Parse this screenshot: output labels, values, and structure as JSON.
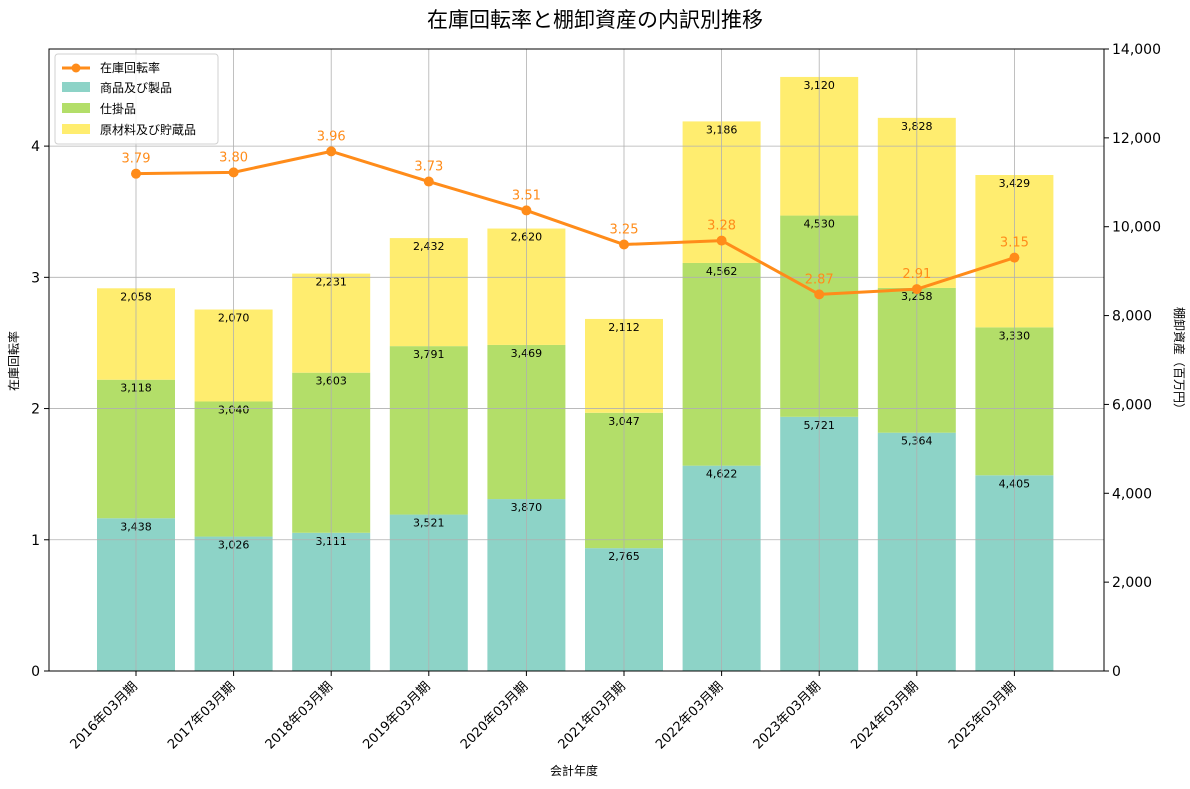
{
  "chart_data": {
    "type": "bar",
    "title": "在庫回転率と棚卸資産の内訳別推移",
    "xlabel": "会計年度",
    "ylabel_left": "在庫回転率",
    "ylabel_right": "棚卸資産（百万円）",
    "categories": [
      "2016年03月期",
      "2017年03月期",
      "2018年03月期",
      "2019年03月期",
      "2020年03月期",
      "2021年03月期",
      "2022年03月期",
      "2023年03月期",
      "2024年03月期",
      "2025年03月期"
    ],
    "stacked_bars": [
      {
        "name": "商品及び製品",
        "color": "#8dd3c7",
        "values": [
          3438,
          3026,
          3111,
          3521,
          3870,
          2765,
          4622,
          5721,
          5364,
          4405
        ],
        "labels": [
          "3,438",
          "3,026",
          "3,111",
          "3,521",
          "3,870",
          "2,765",
          "4,622",
          "5,721",
          "5,364",
          "4,405"
        ]
      },
      {
        "name": "仕掛品",
        "color": "#b3de69",
        "values": [
          3118,
          3040,
          3603,
          3791,
          3469,
          3047,
          4562,
          4530,
          3258,
          3330
        ],
        "labels": [
          "3,118",
          "3,040",
          "3,603",
          "3,791",
          "3,469",
          "3,047",
          "4,562",
          "4,530",
          "3,258",
          "3,330"
        ]
      },
      {
        "name": "原材料及び貯蔵品",
        "color": "#ffed6f",
        "values": [
          2058,
          2070,
          2231,
          2432,
          2620,
          2112,
          3186,
          3120,
          3828,
          3429
        ],
        "labels": [
          "2,058",
          "2,070",
          "2,231",
          "2,432",
          "2,620",
          "2,112",
          "3,186",
          "3,120",
          "3,828",
          "3,429"
        ]
      }
    ],
    "line": {
      "name": "在庫回転率",
      "color": "#ff8c1a",
      "values": [
        3.79,
        3.8,
        3.96,
        3.73,
        3.51,
        3.25,
        3.28,
        2.87,
        2.91,
        3.15
      ],
      "labels": [
        "3.79",
        "3.80",
        "3.96",
        "3.73",
        "3.51",
        "3.25",
        "3.28",
        "2.87",
        "2.91",
        "3.15"
      ]
    },
    "y_left": {
      "min": 0,
      "max": 4.74,
      "ticks": [
        0,
        1,
        2,
        3,
        4
      ],
      "tick_labels": [
        "0",
        "1",
        "2",
        "3",
        "4"
      ]
    },
    "y_right": {
      "min": 0,
      "max": 14000,
      "ticks": [
        0,
        2000,
        4000,
        6000,
        8000,
        10000,
        12000,
        14000
      ],
      "tick_labels": [
        "0",
        "2,000",
        "4,000",
        "6,000",
        "8,000",
        "10,000",
        "12,000",
        "14,000"
      ]
    },
    "grid": true,
    "legend_position": "top-left"
  }
}
